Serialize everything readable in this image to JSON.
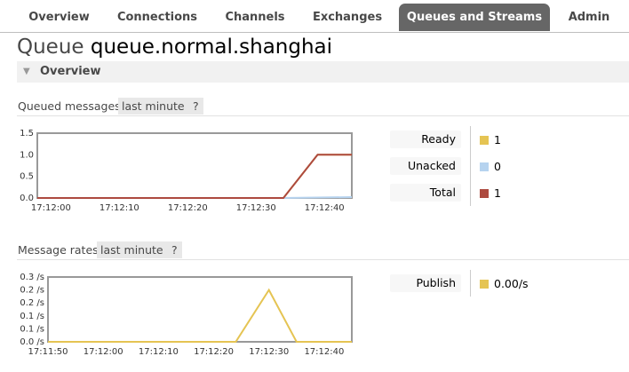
{
  "nav": {
    "tabs": [
      {
        "label": "Overview"
      },
      {
        "label": "Connections"
      },
      {
        "label": "Channels"
      },
      {
        "label": "Exchanges"
      },
      {
        "label": "Queues and Streams",
        "active": true
      },
      {
        "label": "Admin"
      }
    ]
  },
  "page": {
    "prefix": "Queue",
    "queue_name": "queue.normal.shanghai"
  },
  "section": {
    "title": "Overview"
  },
  "queued": {
    "title": "Queued messages",
    "range": "last minute",
    "help": "?",
    "legend": [
      {
        "label": "Ready",
        "value": "1",
        "color": "#e5c453"
      },
      {
        "label": "Unacked",
        "value": "0",
        "color": "#b6d3ef"
      },
      {
        "label": "Total",
        "value": "1",
        "color": "#ad4a3f"
      }
    ]
  },
  "rates": {
    "title": "Message rates",
    "range": "last minute",
    "help": "?",
    "legend": [
      {
        "label": "Publish",
        "value": "0.00/s",
        "color": "#e5c453"
      }
    ]
  },
  "chart_data": [
    {
      "type": "line",
      "yticks": [
        "0.0",
        "0.5",
        "1.0",
        "1.5"
      ],
      "xticks": [
        "17:12:00",
        "17:12:10",
        "17:12:20",
        "17:12:30",
        "17:12:40"
      ],
      "xtick_values": [
        0,
        10,
        20,
        30,
        40
      ],
      "xlim": [
        -2,
        44
      ],
      "ylim": [
        0,
        1.5
      ],
      "series": [
        {
          "name": "Ready",
          "color": "#e5c453",
          "x": [
            -2,
            34,
            39,
            44
          ],
          "y": [
            0,
            0,
            1,
            1
          ]
        },
        {
          "name": "Unacked",
          "color": "#b6d3ef",
          "x": [
            -2,
            34,
            44
          ],
          "y": [
            0,
            0,
            0.02
          ]
        },
        {
          "name": "Total",
          "color": "#ad4a3f",
          "x": [
            -2,
            34,
            39,
            44
          ],
          "y": [
            0,
            0,
            1,
            1
          ]
        }
      ]
    },
    {
      "type": "line",
      "yticks": [
        "0.0 /s",
        "0.1 /s",
        "0.1 /s",
        "0.2 /s",
        "0.2 /s",
        "0.3 /s"
      ],
      "ytick_values": [
        0,
        0.05,
        0.1,
        0.15,
        0.2,
        0.25
      ],
      "xticks": [
        "17:11:50",
        "17:12:00",
        "17:12:10",
        "17:12:20",
        "17:12:30",
        "17:12:40"
      ],
      "xtick_values": [
        -10,
        0,
        10,
        20,
        30,
        40
      ],
      "xlim": [
        -10,
        45
      ],
      "ylim": [
        0,
        0.25
      ],
      "series": [
        {
          "name": "Publish",
          "color": "#e5c453",
          "x": [
            -10,
            24,
            30,
            35,
            45
          ],
          "y": [
            0,
            0,
            0.2,
            0,
            0
          ]
        }
      ]
    }
  ]
}
